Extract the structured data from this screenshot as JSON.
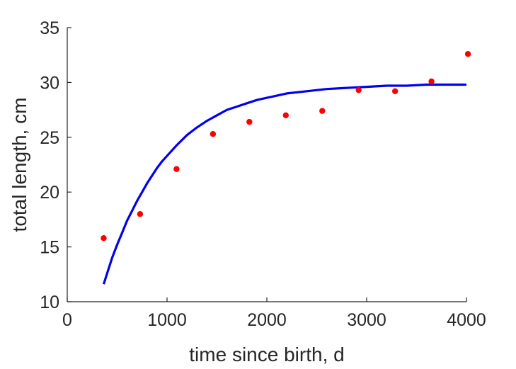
{
  "chart_data": {
    "type": "scatter",
    "title": "",
    "xlabel": "time since birth, d",
    "ylabel": "total length, cm",
    "xlim": [
      0,
      4000
    ],
    "ylim": [
      10,
      35
    ],
    "xticks": [
      0,
      1000,
      2000,
      3000,
      4000
    ],
    "yticks": [
      10,
      15,
      20,
      25,
      30,
      35
    ],
    "xtick_labels": [
      "0",
      "1000",
      "2000",
      "3000",
      "4000"
    ],
    "ytick_labels": [
      "10",
      "15",
      "20",
      "25",
      "30",
      "35"
    ],
    "grid": false,
    "legend": "none",
    "series": [
      {
        "kind": "scatter",
        "color": "#ff0000",
        "x": [
          365,
          730,
          1095,
          1460,
          1825,
          2190,
          2555,
          2920,
          3285,
          3650,
          4015
        ],
        "y": [
          15.8,
          18.0,
          22.1,
          25.3,
          26.4,
          27.0,
          27.4,
          29.3,
          29.2,
          30.1,
          32.6
        ]
      },
      {
        "kind": "line",
        "color": "#0000ee",
        "x": [
          365,
          400,
          450,
          500,
          550,
          600,
          650,
          700,
          750,
          800,
          850,
          900,
          950,
          1000,
          1100,
          1200,
          1300,
          1400,
          1500,
          1600,
          1700,
          1800,
          1900,
          2000,
          2200,
          2400,
          2600,
          2800,
          3000,
          3200,
          3400,
          3600,
          3800,
          4000
        ],
        "y": [
          11.6,
          12.6,
          14.0,
          15.2,
          16.3,
          17.4,
          18.3,
          19.2,
          20.0,
          20.8,
          21.5,
          22.2,
          22.8,
          23.3,
          24.3,
          25.2,
          25.9,
          26.5,
          27.0,
          27.5,
          27.8,
          28.1,
          28.4,
          28.6,
          29.0,
          29.2,
          29.4,
          29.5,
          29.6,
          29.7,
          29.7,
          29.8,
          29.8,
          29.8
        ]
      }
    ]
  }
}
